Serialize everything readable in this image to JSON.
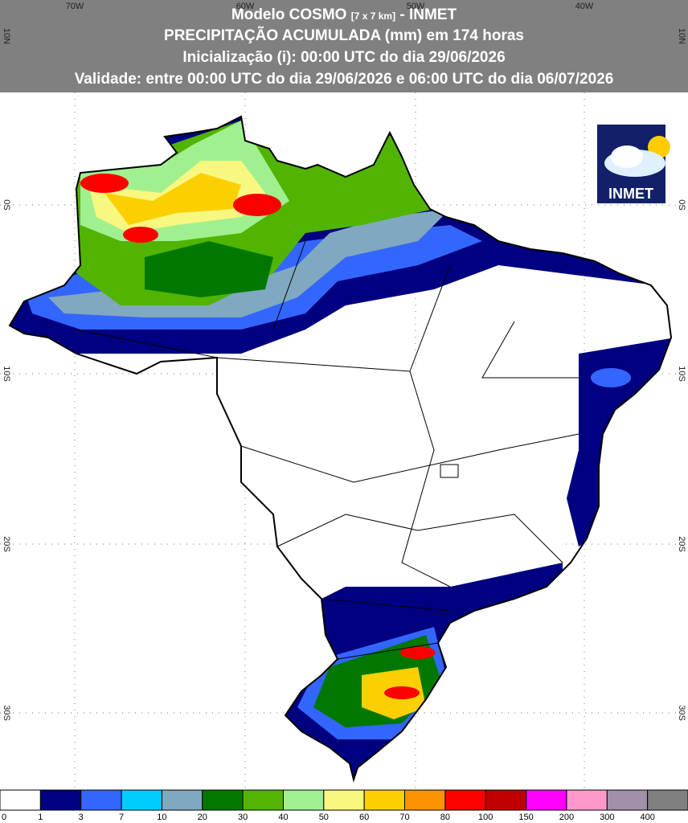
{
  "header": {
    "title_parts": [
      "Modelo COSMO",
      "[7 x 7 km]",
      "- INMET"
    ],
    "lines": [
      "PRECIPITAÇÃO ACUMULADA (mm) em 174 horas",
      "Inicialização (i): 00:00 UTC do dia 29/06/2026",
      "Validade: entre 00:00 UTC do dia 29/06/2026 e 06:00 UTC do dia 06/07/2026"
    ]
  },
  "axes": {
    "longitude_labels": [
      "70W",
      "60W",
      "50W",
      "40W"
    ],
    "latitude_labels": [
      "10N",
      "0S",
      "10S",
      "20S",
      "30S"
    ]
  },
  "legend": {
    "labels": [
      "0",
      "1",
      "3",
      "7",
      "10",
      "20",
      "30",
      "40",
      "50",
      "60",
      "70",
      "80",
      "100",
      "150",
      "200",
      "300",
      "400"
    ],
    "colors": [
      "#ffffff",
      "#000080",
      "#3366ff",
      "#00ccff",
      "#80a8c0",
      "#007800",
      "#50b400",
      "#a0f090",
      "#f8f880",
      "#fcd000",
      "#fc9400",
      "#fc0000",
      "#c00000",
      "#ff00ff",
      "#ff99cc",
      "#a090a8",
      "#808080"
    ]
  },
  "logo": {
    "text": "INMET"
  }
}
